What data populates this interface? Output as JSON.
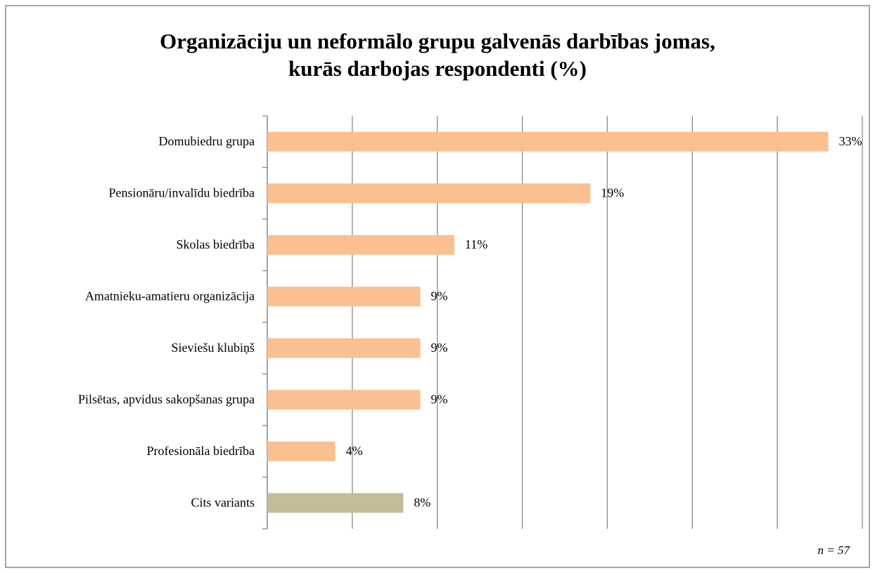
{
  "chart_data": {
    "type": "bar",
    "orientation": "horizontal",
    "title": [
      "Organizāciju un neformālo grupu galvenās darbības jomas,",
      "kurās darbojas respondenti (%)"
    ],
    "categories": [
      "Domubiedru grupa",
      "Pensionāru/invalīdu biedrība",
      "Skolas biedrība",
      "Amatnieku-amatieru organizācija",
      "Sieviešu klubiņš",
      "Pilsētas, apvidus sakopšanas grupa",
      "Profesionāla biedrība",
      "Cits variants"
    ],
    "values": [
      33,
      19,
      11,
      9,
      9,
      9,
      4,
      8
    ],
    "value_labels": [
      "33%",
      "19%",
      "11%",
      "9%",
      "9%",
      "9%",
      "4%",
      "8%"
    ],
    "colors": [
      "#fac090",
      "#fac090",
      "#fac090",
      "#fac090",
      "#fac090",
      "#fac090",
      "#fac090",
      "#c4bd97"
    ],
    "xlim": [
      0,
      35
    ],
    "xticks": [
      0,
      5,
      10,
      15,
      20,
      25,
      30,
      35
    ],
    "grid": true,
    "annotation": "n = 57"
  }
}
